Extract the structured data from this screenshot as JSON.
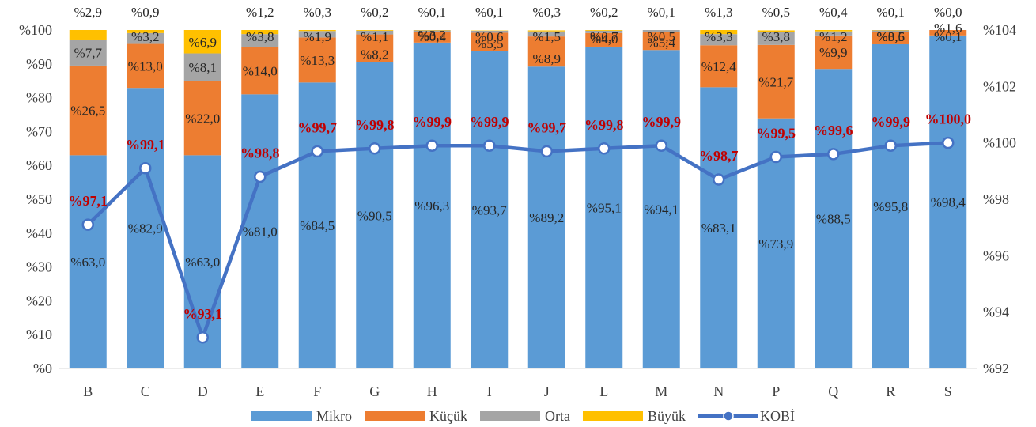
{
  "chart_data": {
    "type": "bar",
    "stacked": true,
    "categories": [
      "B",
      "C",
      "D",
      "E",
      "F",
      "G",
      "H",
      "I",
      "J",
      "L",
      "M",
      "N",
      "P",
      "Q",
      "R",
      "S"
    ],
    "series": [
      {
        "name": "Mikro",
        "color": "#5B9BD5",
        "values": [
          63.0,
          82.9,
          63.0,
          81.0,
          84.5,
          90.5,
          96.3,
          93.7,
          89.2,
          95.1,
          94.1,
          83.1,
          73.9,
          88.5,
          95.8,
          98.4
        ]
      },
      {
        "name": "Küçük",
        "color": "#ED7D31",
        "values": [
          26.5,
          13.0,
          22.0,
          14.0,
          13.3,
          8.2,
          3.2,
          5.5,
          8.9,
          4.0,
          5.4,
          12.4,
          21.7,
          9.9,
          3.6,
          1.6
        ]
      },
      {
        "name": "Orta",
        "color": "#A5A5A5",
        "values": [
          7.7,
          3.2,
          8.1,
          3.8,
          1.9,
          1.1,
          0.4,
          0.6,
          1.5,
          0.7,
          0.5,
          3.3,
          3.8,
          1.2,
          0.5,
          0.1
        ]
      },
      {
        "name": "Büyük",
        "color": "#FFC000",
        "values": [
          2.9,
          0.9,
          6.9,
          1.2,
          0.3,
          0.2,
          0.1,
          0.1,
          0.3,
          0.2,
          0.1,
          1.3,
          0.5,
          0.4,
          0.1,
          0.0
        ]
      }
    ],
    "line_series": {
      "name": "KOBİ",
      "color": "#4472C4",
      "axis": "right",
      "values": [
        97.1,
        99.1,
        93.1,
        98.8,
        99.7,
        99.8,
        99.9,
        99.9,
        99.7,
        99.8,
        99.9,
        98.7,
        99.5,
        99.6,
        99.9,
        100.0
      ]
    },
    "left_axis": {
      "ylim": [
        0,
        100
      ],
      "ticks": [
        "%0",
        "%10",
        "%20",
        "%30",
        "%40",
        "%50",
        "%60",
        "%70",
        "%80",
        "%90",
        "%100"
      ]
    },
    "right_axis": {
      "ylim": [
        92,
        104
      ],
      "ticks": [
        "%92",
        "%94",
        "%96",
        "%98",
        "%100",
        "%102",
        "%104"
      ]
    },
    "value_prefix": "%",
    "decimal_separator": ",",
    "legend_position": "bottom",
    "grid": false
  }
}
